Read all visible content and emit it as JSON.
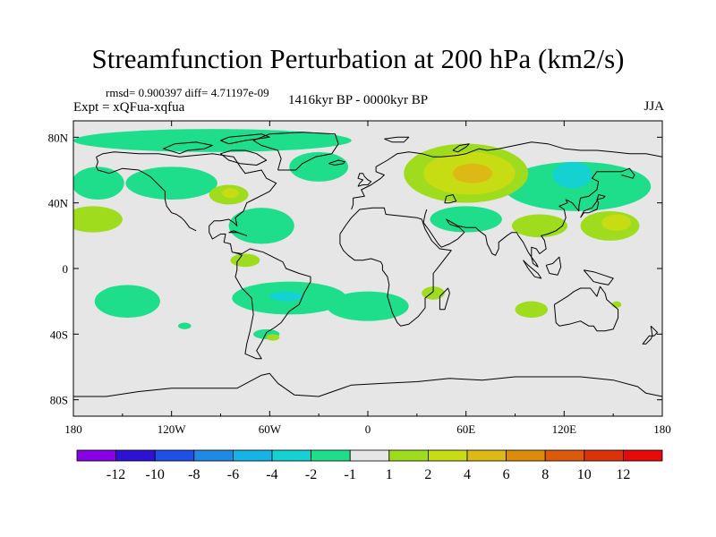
{
  "header": {
    "title": "Streamfunction Perturbation at 200 hPa (km2/s)",
    "stats": "rmsd= 0.900397 diff= 4.71197e-09",
    "experiment": "Expt = xQFua-xqfua",
    "period": "1416kyr BP - 0000kyr BP",
    "season": "JJA"
  },
  "chart_data": {
    "type": "heatmap",
    "title": "Streamfunction Perturbation at 200 hPa (km2/s)",
    "projection": "cylindrical equidistant",
    "xlabel": "",
    "ylabel": "",
    "xlim": [
      -180,
      180
    ],
    "ylim": [
      -90,
      90
    ],
    "x_ticks": [
      {
        "value": -180,
        "label": "180"
      },
      {
        "value": -120,
        "label": "120W"
      },
      {
        "value": -60,
        "label": "60W"
      },
      {
        "value": 0,
        "label": "0"
      },
      {
        "value": 60,
        "label": "60E"
      },
      {
        "value": 120,
        "label": "120E"
      },
      {
        "value": 180,
        "label": "180"
      }
    ],
    "y_ticks": [
      {
        "value": 80,
        "label": "80N"
      },
      {
        "value": 40,
        "label": "40N"
      },
      {
        "value": 0,
        "label": "0"
      },
      {
        "value": -40,
        "label": "40S"
      },
      {
        "value": -80,
        "label": "80S"
      }
    ],
    "colorbar": {
      "levels": [
        "-12",
        "-10",
        "-8",
        "-6",
        "-4",
        "-2",
        "-1",
        "1",
        "2",
        "4",
        "6",
        "8",
        "10",
        "12"
      ],
      "colors": [
        "#8a00e6",
        "#2d12d6",
        "#1e4fe6",
        "#1e8ae6",
        "#14b4e6",
        "#14d2d2",
        "#1ede8c",
        "#e6e6e6",
        "#a0dc1e",
        "#c8dc14",
        "#dcb914",
        "#dc8c0a",
        "#dc5a0a",
        "#dc320a",
        "#e60a0a"
      ]
    },
    "regions": [
      {
        "bin": "-1..-2",
        "lon": -95,
        "lat": 78,
        "rlon": 85,
        "rlat": 7
      },
      {
        "bin": "-1..-2",
        "lon": -165,
        "lat": 52,
        "rlon": 16,
        "rlat": 10
      },
      {
        "bin": "-1..-2",
        "lon": -120,
        "lat": 52,
        "rlon": 28,
        "rlat": 10
      },
      {
        "bin": "-1..-2",
        "lon": -30,
        "lat": 62,
        "rlon": 18,
        "rlat": 9
      },
      {
        "bin": "-1..-2",
        "lon": -65,
        "lat": 26,
        "rlon": 20,
        "rlat": 11
      },
      {
        "bin": "-1..-2",
        "lon": -48,
        "lat": -18,
        "rlon": 35,
        "rlat": 10
      },
      {
        "bin": "-2..-4",
        "lon": -50,
        "lat": -17,
        "rlon": 10,
        "rlat": 3
      },
      {
        "bin": "-1..-2",
        "lon": -147,
        "lat": -20,
        "rlon": 20,
        "rlat": 10
      },
      {
        "bin": "-1..-2",
        "lon": 0,
        "lat": -23,
        "rlon": 25,
        "rlat": 9
      },
      {
        "bin": "-1..-2",
        "lon": 128,
        "lat": 50,
        "rlon": 45,
        "rlat": 15
      },
      {
        "bin": "-2..-4",
        "lon": 125,
        "lat": 57,
        "rlon": 12,
        "rlat": 8
      },
      {
        "bin": "-1..-2",
        "lon": 60,
        "lat": 30,
        "rlon": 22,
        "rlat": 8
      },
      {
        "bin": "-1..-2",
        "lon": -62,
        "lat": -40,
        "rlon": 8,
        "rlat": 3
      },
      {
        "bin": "-1..-2",
        "lon": -112,
        "lat": -35,
        "rlon": 4,
        "rlat": 2
      },
      {
        "bin": "1..2",
        "lon": 60,
        "lat": 58,
        "rlon": 38,
        "rlat": 18
      },
      {
        "bin": "2..4",
        "lon": 62,
        "lat": 58,
        "rlon": 28,
        "rlat": 13
      },
      {
        "bin": "4..6",
        "lon": 64,
        "lat": 58,
        "rlon": 12,
        "rlat": 6
      },
      {
        "bin": "1..2",
        "lon": 148,
        "lat": 26,
        "rlon": 18,
        "rlat": 9
      },
      {
        "bin": "2..4",
        "lon": 152,
        "lat": 28,
        "rlon": 9,
        "rlat": 5
      },
      {
        "bin": "1..2",
        "lon": -85,
        "lat": 45,
        "rlon": 12,
        "rlat": 6
      },
      {
        "bin": "2..4",
        "lon": -84,
        "lat": 46,
        "rlon": 5,
        "rlat": 3
      },
      {
        "bin": "1..2",
        "lon": -168,
        "lat": 30,
        "rlon": 18,
        "rlat": 8
      },
      {
        "bin": "1..2",
        "lon": 105,
        "lat": 26,
        "rlon": 17,
        "rlat": 7
      },
      {
        "bin": "1..2",
        "lon": -75,
        "lat": 5,
        "rlon": 9,
        "rlat": 4
      },
      {
        "bin": "1..2",
        "lon": 40,
        "lat": -15,
        "rlon": 7,
        "rlat": 4
      },
      {
        "bin": "1..2",
        "lon": 100,
        "lat": -25,
        "rlon": 10,
        "rlat": 5
      },
      {
        "bin": "1..2",
        "lon": 152,
        "lat": -22,
        "rlon": 3,
        "rlat": 2
      },
      {
        "bin": "1..2",
        "lon": -58,
        "lat": -42,
        "rlon": 4,
        "rlat": 2
      }
    ]
  }
}
